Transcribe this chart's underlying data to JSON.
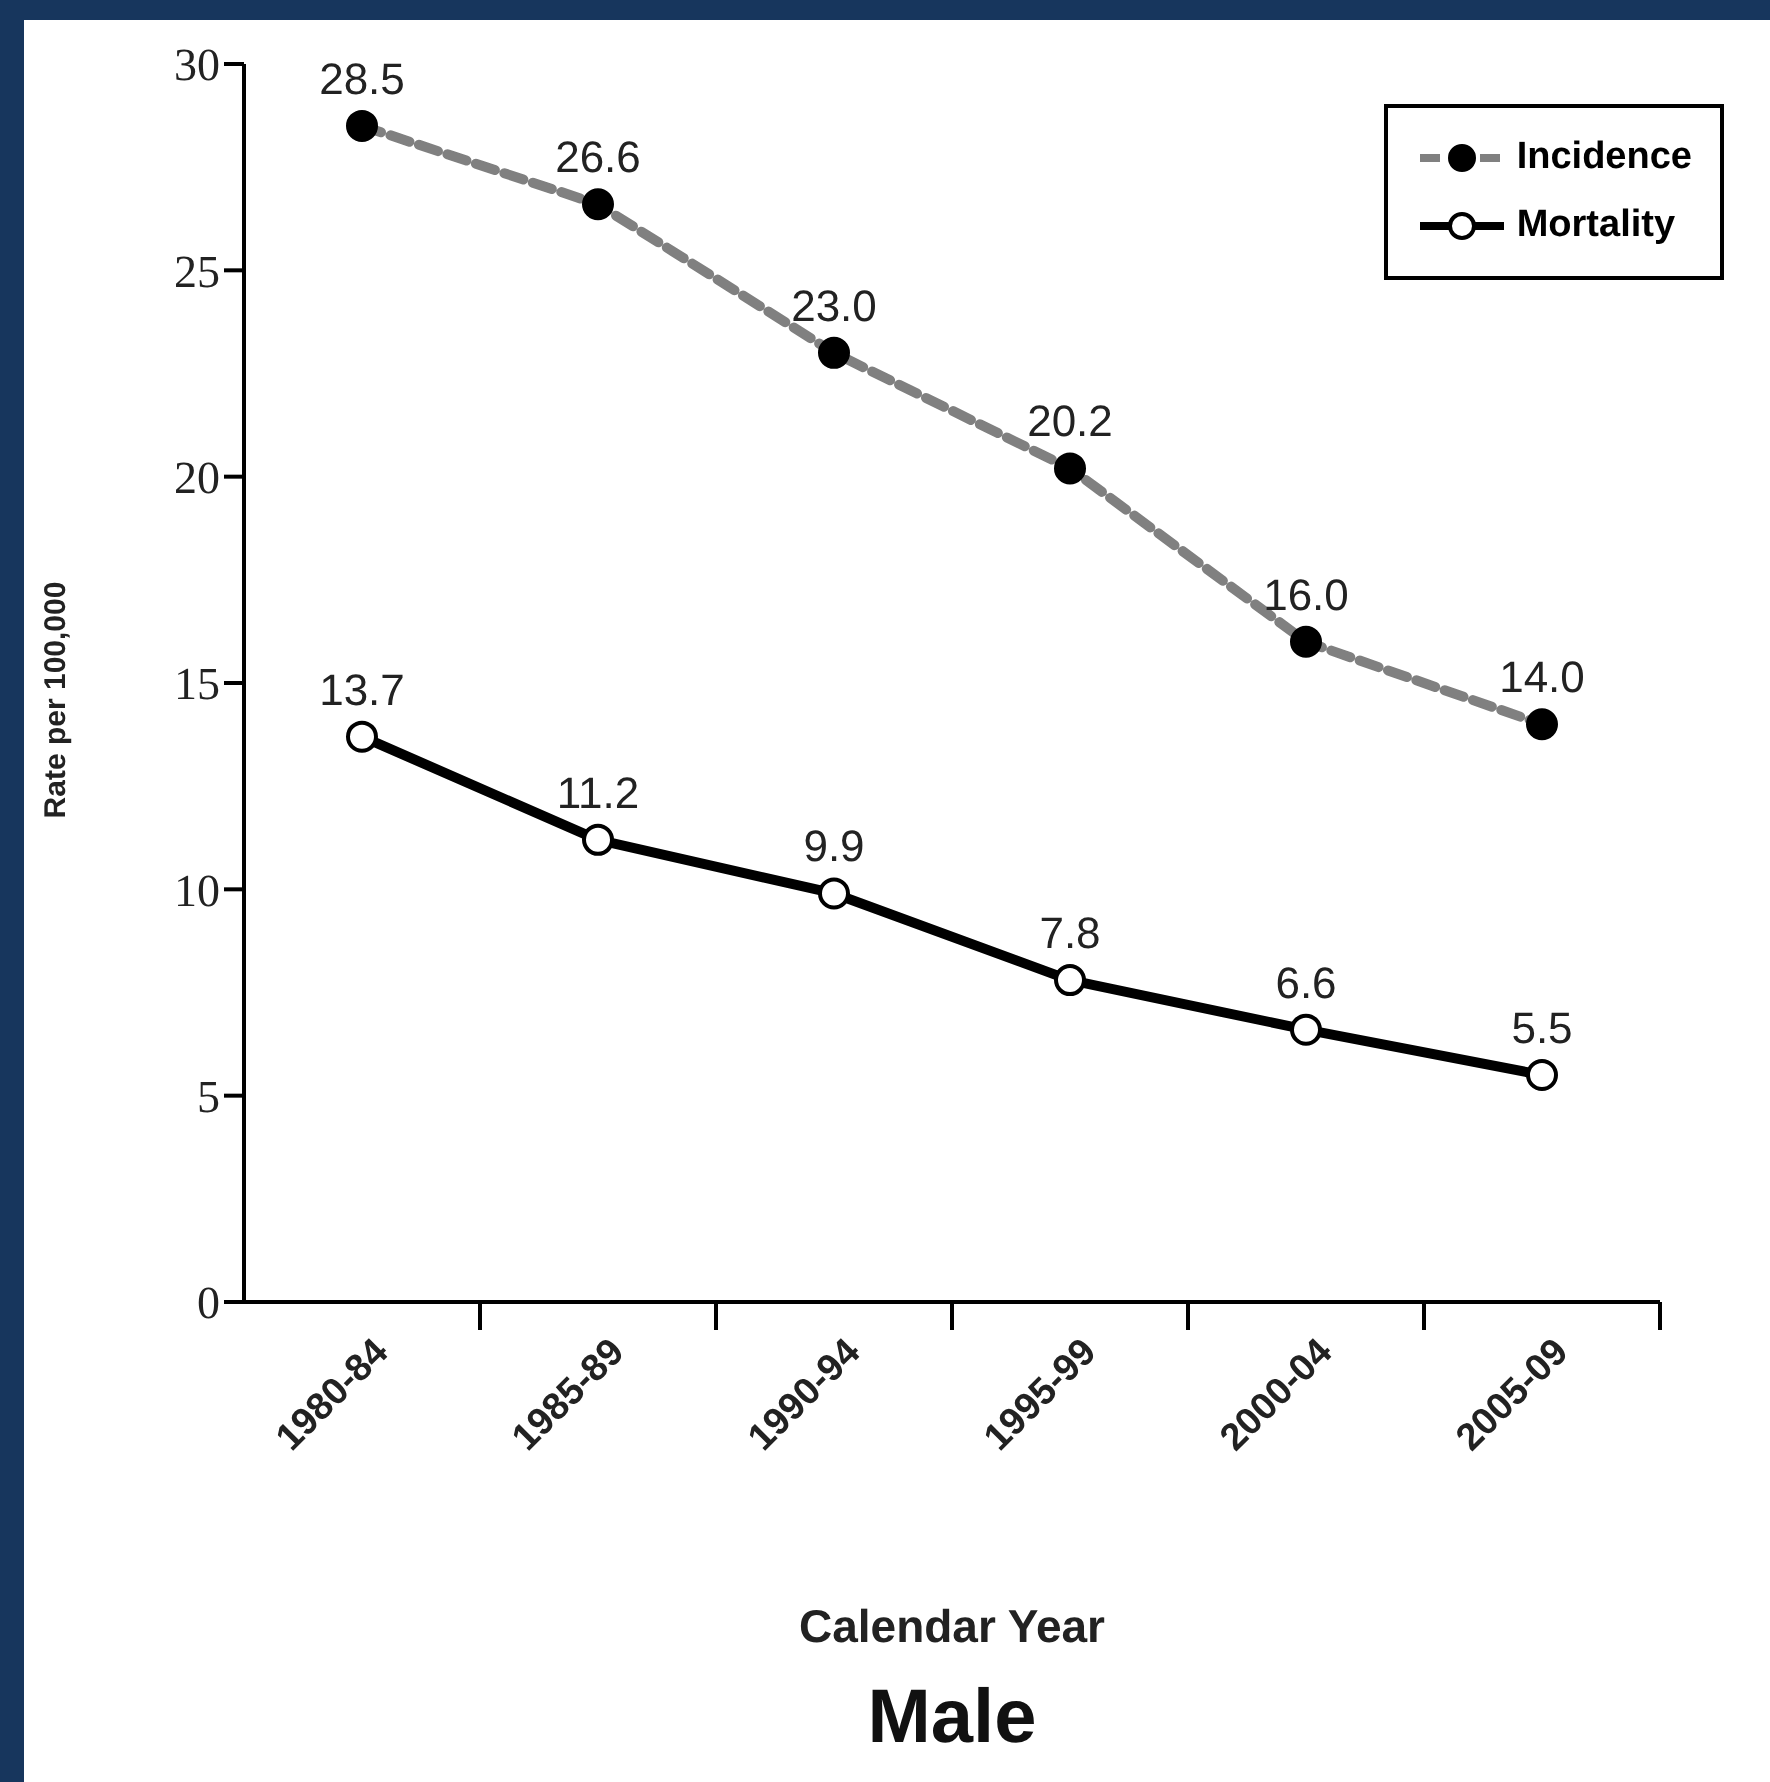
{
  "chart_data": {
    "type": "line",
    "title": "Male",
    "xlabel": "Calendar Year",
    "ylabel": "Rate per 100,000",
    "categories": [
      "1980-84",
      "1985-89",
      "1990-94",
      "1995-99",
      "2000-04",
      "2005-09"
    ],
    "series": [
      {
        "name": "Incidence",
        "color": "#808080",
        "line_style": "dashed",
        "values": [
          28.5,
          26.6,
          23.0,
          20.2,
          16.0,
          14.0
        ],
        "value_labels": [
          "28.5",
          "26.6",
          "23.0",
          "20.2",
          "16.0",
          "14.0"
        ]
      },
      {
        "name": "Mortality",
        "color": "#000000",
        "line_style": "solid",
        "values": [
          13.7,
          11.2,
          9.9,
          7.8,
          6.6,
          5.5
        ],
        "value_labels": [
          "13.7",
          "11.2",
          "9.9",
          "7.8",
          "6.6",
          "5.5"
        ]
      }
    ],
    "ylim": [
      0,
      30
    ],
    "yticks": [
      0,
      5,
      10,
      15,
      20,
      25,
      30
    ],
    "grid": false,
    "legend": "top right",
    "marker": "circle"
  }
}
